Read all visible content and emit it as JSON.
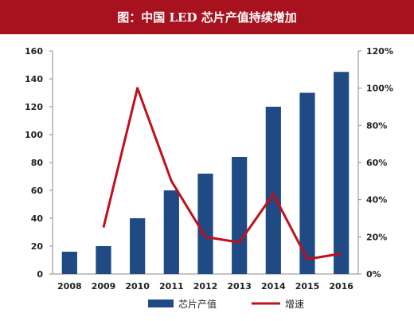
{
  "title": "图：中国 LED 芯片产值持续增加",
  "colors": {
    "title_bg": "#a8121e",
    "bar": "#1f4a84",
    "line": "#c0101c"
  },
  "chart_data": {
    "type": "bar+line",
    "categories": [
      "2008",
      "2009",
      "2010",
      "2011",
      "2012",
      "2013",
      "2014",
      "2015",
      "2016"
    ],
    "series": [
      {
        "name": "芯片产值",
        "type": "bar",
        "axis": "left",
        "values": [
          16,
          20,
          40,
          60,
          72,
          84,
          120,
          130,
          145
        ]
      },
      {
        "name": "增速",
        "type": "line",
        "axis": "right",
        "unit": "%",
        "values": [
          null,
          25,
          100,
          50,
          20,
          17,
          43,
          8,
          11
        ]
      }
    ],
    "ylim_left": [
      0,
      160
    ],
    "yticks_left": [
      "0",
      "20",
      "40",
      "60",
      "80",
      "100",
      "120",
      "140",
      "160"
    ],
    "ylim_right": [
      0,
      120
    ],
    "yticks_right": [
      "0%",
      "20%",
      "40%",
      "60%",
      "80%",
      "100%",
      "120%"
    ],
    "legend_position": "bottom",
    "grid": false
  }
}
